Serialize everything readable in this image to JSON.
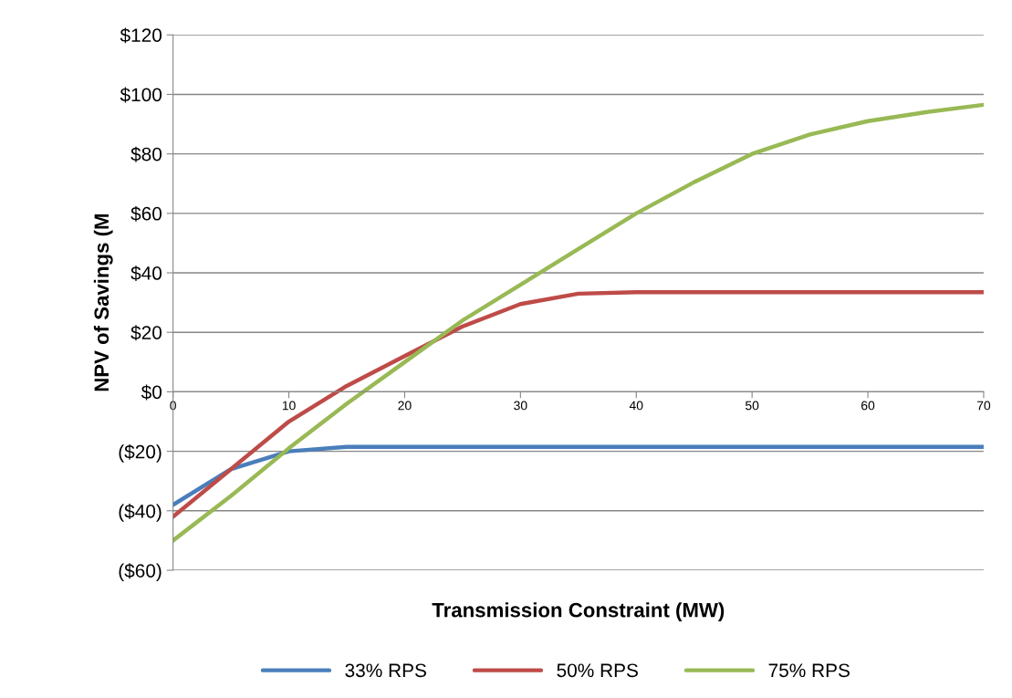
{
  "chart_data": {
    "type": "line",
    "xlabel": "Transmission Constraint (MW)",
    "ylabel": "NPV of Savings (M",
    "x": [
      0,
      5,
      10,
      15,
      20,
      25,
      30,
      35,
      40,
      45,
      50,
      55,
      60,
      65,
      70
    ],
    "series": [
      {
        "name": "33% RPS",
        "color": "#4a7ebb",
        "values": [
          -38,
          -26,
          -20,
          -18.5,
          -18.5,
          -18.5,
          -18.5,
          -18.5,
          -18.5,
          -18.5,
          -18.5,
          -18.5,
          -18.5,
          -18.5,
          -18.5
        ]
      },
      {
        "name": "50% RPS",
        "color": "#be4b48",
        "values": [
          -42,
          -26,
          -10,
          2,
          12,
          22,
          29.5,
          33,
          33.5,
          33.5,
          33.5,
          33.5,
          33.5,
          33.5,
          33.5
        ]
      },
      {
        "name": "75% RPS",
        "color": "#98b954",
        "values": [
          -50,
          -35,
          -19,
          -4,
          10,
          24,
          36,
          48,
          60,
          70.5,
          80,
          86.5,
          91,
          94,
          96.5
        ]
      }
    ],
    "xlim": [
      0,
      70
    ],
    "xticks": [
      0,
      10,
      20,
      30,
      40,
      50,
      60,
      70
    ],
    "ylim": [
      -60,
      120
    ],
    "yticks": [
      {
        "value": -60,
        "label": "($60)"
      },
      {
        "value": -40,
        "label": "($40)"
      },
      {
        "value": -20,
        "label": "($20)"
      },
      {
        "value": 0,
        "label": "$0"
      },
      {
        "value": 20,
        "label": "$20"
      },
      {
        "value": 40,
        "label": "$40"
      },
      {
        "value": 60,
        "label": "$60"
      },
      {
        "value": 80,
        "label": "$80"
      },
      {
        "value": 100,
        "label": "$100"
      },
      {
        "value": 120,
        "label": "$120"
      }
    ],
    "grid": "y",
    "legend": "bottom",
    "marker": "none",
    "line_style": "solid"
  }
}
